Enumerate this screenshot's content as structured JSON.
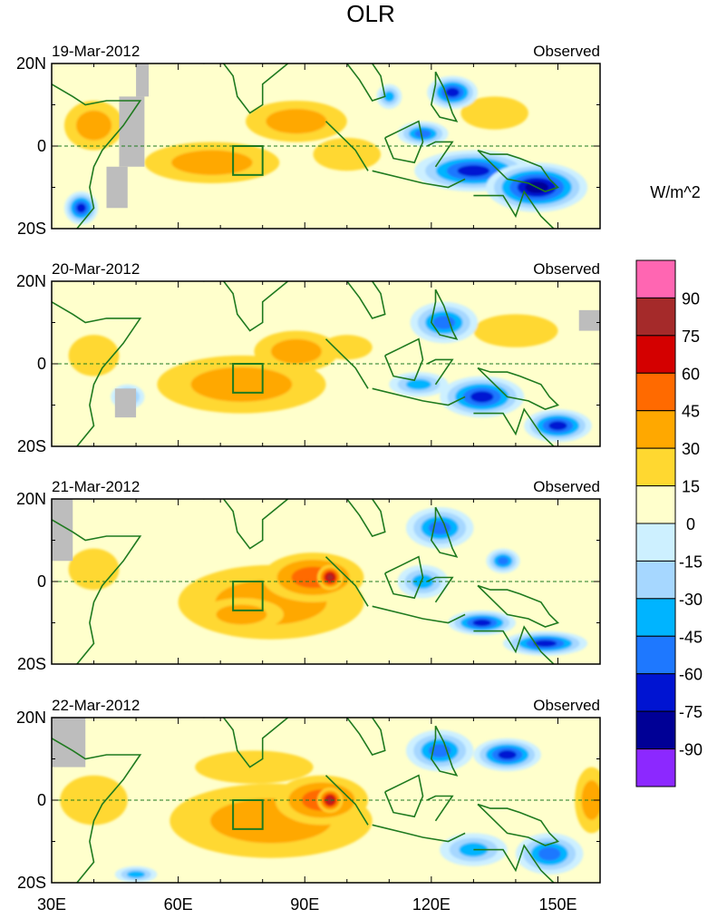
{
  "chart_data": {
    "type": "heatmap",
    "title": "OLR",
    "units": "W/m^2",
    "x_ticks": [
      "30E",
      "60E",
      "90E",
      "120E",
      "150E"
    ],
    "y_ticks": [
      "20N",
      "0",
      "20S"
    ],
    "colorbar_labels": [
      "90",
      "75",
      "60",
      "45",
      "30",
      "15",
      "0",
      "-15",
      "-30",
      "-45",
      "-60",
      "-75",
      "-90"
    ],
    "colorbar_colors": [
      "#ff66b2",
      "#a52a2a",
      "#d40000",
      "#ff6a00",
      "#ffa800",
      "#ffd830",
      "#ffffcc",
      "#cdf0ff",
      "#a6d7ff",
      "#00b4ff",
      "#1e78ff",
      "#0014d2",
      "#000096",
      "#8c28ff"
    ],
    "xlim": [
      30,
      160
    ],
    "ylim": [
      -20,
      20
    ],
    "equator_line": "dashed",
    "panels": [
      {
        "date": "19-Mar-2012",
        "label": "Observed"
      },
      {
        "date": "20-Mar-2012",
        "label": "Observed"
      },
      {
        "date": "21-Mar-2012",
        "label": "Observed"
      },
      {
        "date": "22-Mar-2012",
        "label": "Observed"
      }
    ]
  }
}
